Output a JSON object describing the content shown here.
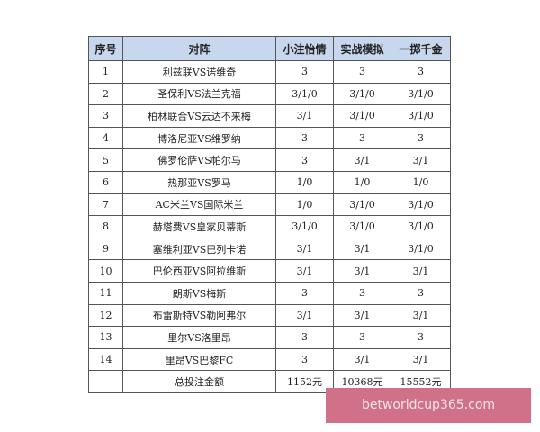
{
  "table": {
    "headers": [
      "序号",
      "对阵",
      "小注怡情",
      "实战模拟",
      "一掷千金"
    ],
    "rows": [
      [
        "1",
        "利兹联VS诺维奇",
        "3",
        "3",
        "3"
      ],
      [
        "2",
        "圣保利VS法兰克福",
        "3/1/0",
        "3/1/0",
        "3/1/0"
      ],
      [
        "3",
        "柏林联合VS云达不来梅",
        "3/1",
        "3/1/0",
        "3/1/0"
      ],
      [
        "4",
        "博洛尼亚VS维罗纳",
        "3",
        "3",
        "3"
      ],
      [
        "5",
        "佛罗伦萨VS帕尔马",
        "3",
        "3/1",
        "3/1"
      ],
      [
        "6",
        "热那亚VS罗马",
        "1/0",
        "1/0",
        "1/0"
      ],
      [
        "7",
        "AC米兰VS国际米兰",
        "1/0",
        "3/1/0",
        "3/1/0"
      ],
      [
        "8",
        "赫塔费VS皇家贝蒂斯",
        "3/1/0",
        "3/1/0",
        "3/1/0"
      ],
      [
        "9",
        "塞维利亚VS巴列卡诺",
        "3/1",
        "3/1",
        "3/1/0"
      ],
      [
        "10",
        "巴伦西亚VS阿拉维斯",
        "3/1",
        "3/1",
        "3/1"
      ],
      [
        "11",
        "朗斯VS梅斯",
        "3",
        "3",
        "3"
      ],
      [
        "12",
        "布雷斯特VS勒阿弗尔",
        "3/1",
        "3/1",
        "3/1"
      ],
      [
        "13",
        "里尔VS洛里昂",
        "3",
        "3",
        "3"
      ],
      [
        "14",
        "里昂VS巴黎FC",
        "3",
        "3/1",
        "3/1"
      ],
      [
        "",
        "总投注金额",
        "1152元",
        "10368元",
        "15552元"
      ]
    ]
  },
  "watermark": "betworldcup365.com"
}
